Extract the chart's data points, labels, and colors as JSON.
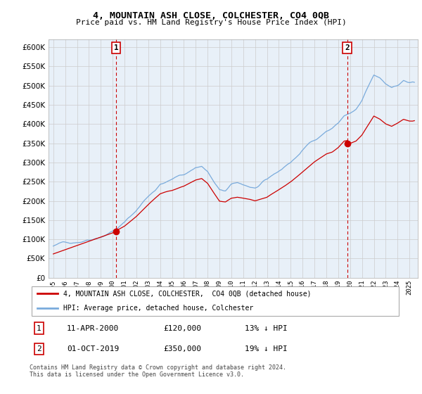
{
  "title": "4, MOUNTAIN ASH CLOSE, COLCHESTER, CO4 0QB",
  "subtitle": "Price paid vs. HM Land Registry's House Price Index (HPI)",
  "legend_line1": "4, MOUNTAIN ASH CLOSE, COLCHESTER,  CO4 0QB (detached house)",
  "legend_line2": "HPI: Average price, detached house, Colchester",
  "sale1_label": "1",
  "sale1_date": "11-APR-2000",
  "sale1_price": "£120,000",
  "sale1_hpi": "13% ↓ HPI",
  "sale2_label": "2",
  "sale2_date": "01-OCT-2019",
  "sale2_price": "£350,000",
  "sale2_hpi": "19% ↓ HPI",
  "copyright": "Contains HM Land Registry data © Crown copyright and database right 2024.\nThis data is licensed under the Open Government Licence v3.0.",
  "line_color_red": "#cc0000",
  "line_color_blue": "#7aabdc",
  "sale_dot_color": "#cc0000",
  "vline_color": "#cc0000",
  "box_color": "#cc0000",
  "chart_bg": "#e8f0f8",
  "ylim": [
    0,
    620000
  ],
  "yticks": [
    0,
    50000,
    100000,
    150000,
    200000,
    250000,
    300000,
    350000,
    400000,
    450000,
    500000,
    550000,
    600000
  ],
  "sale1_year": 2000.29,
  "sale1_value": 120000,
  "sale2_year": 2019.75,
  "sale2_value": 350000,
  "background_color": "#ffffff",
  "grid_color": "#cccccc"
}
